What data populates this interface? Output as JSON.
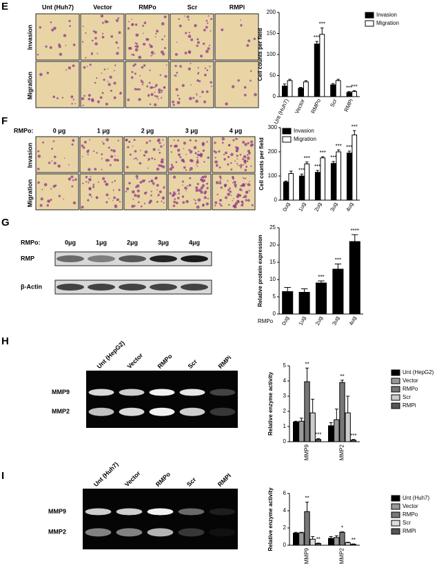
{
  "figure": {
    "E": {
      "letter": "E",
      "columns": [
        "Unt (Huh7)",
        "Vector",
        "RMPo",
        "Scr",
        "RMPi"
      ],
      "rows": [
        "Invasion",
        "Migration"
      ]
    },
    "F": {
      "letter": "F",
      "prefix": "RMPo:",
      "columns": [
        "0 μg",
        "1 μg",
        "2 μg",
        "3 μg",
        "4 μg"
      ],
      "rows": [
        "Invasion",
        "Migration"
      ]
    },
    "G": {
      "letter": "G",
      "prefix": "RMPo:",
      "columns": [
        "0μg",
        "1μg",
        "2μg",
        "3μg",
        "4μg"
      ],
      "rows": [
        "RMP",
        "β-Actin"
      ]
    },
    "H": {
      "letter": "H",
      "lanes": [
        "Unt (HepG2)",
        "Vector",
        "RMPo",
        "Scr",
        "RMPi"
      ],
      "bands": [
        "MMP9",
        "MMP2"
      ]
    },
    "I": {
      "letter": "I",
      "lanes": [
        "Unt (Huh7)",
        "Vector",
        "RMPo",
        "Scr",
        "RMPI"
      ],
      "bands": [
        "MMP9",
        "MMP2"
      ]
    }
  },
  "chart_data": [
    {
      "type": "bar",
      "ylabel": "Cell counts per field",
      "categories": [
        "Unt (Huh7)",
        "Vector",
        "RMPo",
        "Scr",
        "RMPi"
      ],
      "series": [
        {
          "name": "Invasion",
          "color": "#000000",
          "values": [
            25,
            20,
            125,
            28,
            10
          ],
          "errors": [
            5,
            2,
            6,
            3,
            2
          ],
          "sig": [
            null,
            null,
            "***",
            null,
            "***"
          ]
        },
        {
          "name": "Migration",
          "color": "#ffffff",
          "values": [
            38,
            35,
            148,
            38,
            12
          ],
          "errors": [
            3,
            3,
            15,
            3,
            2
          ],
          "sig": [
            null,
            null,
            "***",
            null,
            "***"
          ]
        }
      ],
      "ylim": [
        0,
        200
      ],
      "yticks": [
        0,
        50,
        100,
        150,
        200
      ],
      "legend": "upper right"
    },
    {
      "type": "bar",
      "ylabel": "Cell counts per field",
      "categories": [
        "0ug",
        "1ug",
        "2ug",
        "3ug",
        "4ug"
      ],
      "series": [
        {
          "name": "Invasion",
          "color": "#000000",
          "values": [
            75,
            100,
            115,
            152,
            195
          ],
          "errors": [
            4,
            8,
            8,
            8,
            8
          ],
          "sig": [
            null,
            "***",
            "***",
            "***",
            "***"
          ]
        },
        {
          "name": "Migration",
          "color": "#ffffff",
          "values": [
            110,
            150,
            175,
            200,
            270
          ],
          "errors": [
            10,
            8,
            5,
            8,
            18
          ],
          "sig": [
            null,
            "***",
            "***",
            "***",
            "***"
          ]
        }
      ],
      "ylim": [
        0,
        300
      ],
      "yticks": [
        0,
        100,
        200,
        300
      ],
      "legend": "upper left"
    },
    {
      "type": "bar",
      "ylabel": "Relative protein expression",
      "xlabel": "RMPo",
      "categories": [
        "0ug",
        "1ug",
        "2ug",
        "3ug",
        "4ug"
      ],
      "series": [
        {
          "color": "#000000",
          "values": [
            6.5,
            6.3,
            9,
            13,
            21
          ],
          "errors": [
            1.2,
            1,
            0.6,
            1.5,
            2
          ],
          "sig": [
            null,
            null,
            "***",
            "***",
            "****"
          ]
        }
      ],
      "ylim": [
        0,
        25
      ],
      "yticks": [
        0,
        5,
        10,
        15,
        20,
        25
      ]
    },
    {
      "type": "bar",
      "ylabel": "Relative enzyme activity",
      "categories": [
        "MMP9",
        "MMP2"
      ],
      "series": [
        {
          "name": "Unt (HepG2)",
          "color": "#000000",
          "values": [
            1.3,
            1.05
          ],
          "errors": [
            0.05,
            0.2
          ],
          "sig": [
            null,
            null
          ]
        },
        {
          "name": "Vector",
          "color": "#999999",
          "values": [
            1.35,
            1.45
          ],
          "errors": [
            0.2,
            0.7
          ],
          "sig": [
            null,
            null
          ]
        },
        {
          "name": "RMPo",
          "color": "#777777",
          "values": [
            3.95,
            3.9
          ],
          "errors": [
            0.9,
            0.15
          ],
          "sig": [
            "**",
            "**"
          ]
        },
        {
          "name": "Scr",
          "color": "#cccccc",
          "values": [
            1.9,
            1.9
          ],
          "errors": [
            0.9,
            1.1
          ],
          "sig": [
            null,
            null
          ]
        },
        {
          "name": "RMPi",
          "color": "#555555",
          "values": [
            0.15,
            0.1
          ],
          "errors": [
            0.05,
            0.05
          ],
          "sig": [
            "***",
            "***"
          ]
        }
      ],
      "ylim": [
        0,
        5
      ],
      "yticks": [
        0,
        1,
        2,
        3,
        4,
        5
      ],
      "legend": "outside right"
    },
    {
      "type": "bar",
      "ylabel": "Relative enzyme activity",
      "categories": [
        "MMP9",
        "MMP2"
      ],
      "series": [
        {
          "name": "Unt (Huh7)",
          "color": "#000000",
          "values": [
            1.4,
            0.8
          ],
          "errors": [
            0.1,
            0.2
          ],
          "sig": [
            null,
            null
          ]
        },
        {
          "name": "Vector",
          "color": "#999999",
          "values": [
            1.45,
            0.9
          ],
          "errors": [
            0.05,
            0.2
          ],
          "sig": [
            null,
            null
          ]
        },
        {
          "name": "RMPo",
          "color": "#777777",
          "values": [
            3.9,
            1.5
          ],
          "errors": [
            1.1,
            0.05
          ],
          "sig": [
            "**",
            "*"
          ]
        },
        {
          "name": "Scr",
          "color": "#dddddd",
          "values": [
            0.7,
            0.3
          ],
          "errors": [
            0.3,
            0.05
          ],
          "sig": [
            null,
            null
          ]
        },
        {
          "name": "RMPi",
          "color": "#555555",
          "values": [
            0.2,
            0.1
          ],
          "errors": [
            0.05,
            0.05
          ],
          "sig": [
            "**",
            "**"
          ]
        }
      ],
      "ylim": [
        0,
        6
      ],
      "yticks": [
        0,
        2,
        4,
        6
      ],
      "legend": "outside right"
    }
  ]
}
